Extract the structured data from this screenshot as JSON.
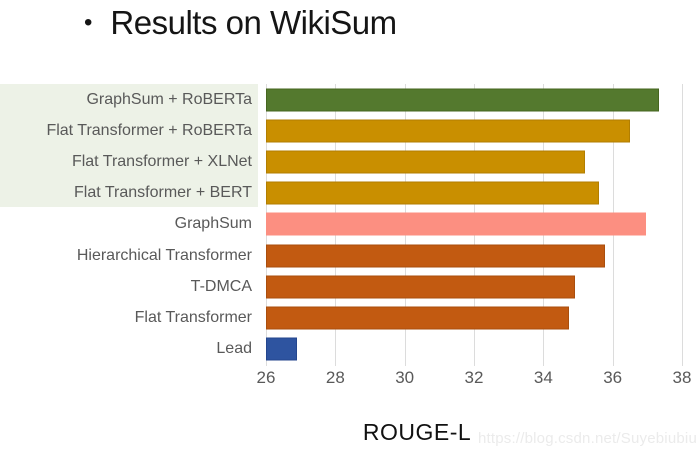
{
  "title": {
    "bullet": "•",
    "text": "Results on WikiSum"
  },
  "chart_data": {
    "type": "bar",
    "orientation": "horizontal",
    "title": "Results on WikiSum",
    "xlabel": "ROUGE-L",
    "xlim": [
      26,
      38
    ],
    "xticks": [
      26,
      28,
      30,
      32,
      34,
      36,
      38
    ],
    "grid": true,
    "legend": "none",
    "categories": [
      "GraphSum + RoBERTa",
      "Flat Transformer + RoBERTa",
      "Flat Transformer + XLNet",
      "Flat Transformer + BERT",
      "GraphSum",
      "Hierarchical Transformer",
      "T-DMCA",
      "Flat Transformer",
      "Lead"
    ],
    "values": [
      37.33,
      36.51,
      35.2,
      35.6,
      36.97,
      35.77,
      34.9,
      34.73,
      26.89
    ],
    "bar_colors": [
      "#54792E",
      "#C98F00",
      "#C98F00",
      "#C98F00",
      "#FC8F81",
      "#C25A11",
      "#C25A11",
      "#C25A11",
      "#2E54A0"
    ],
    "bar_border_colors": [
      "#46661F",
      "#B27E00",
      "#B27E00",
      "#B27E00",
      "#F5restore",
      "#AA4E0D",
      "#AA4E0D",
      "#AA4E0D",
      "#24468E"
    ],
    "highlight": {
      "count": 4,
      "color": "#EDF2E7",
      "note": "top four rows share a light green label band"
    }
  },
  "colors": {
    "gridline": "#DCDCDC",
    "label_text": "#595959",
    "tick_text": "#595959",
    "title_text": "#151515",
    "xlabel_text": "#111111",
    "watermark_text": "#EBEBEB"
  },
  "watermark": "https://blog.csdn.net/Suyebiubiu"
}
